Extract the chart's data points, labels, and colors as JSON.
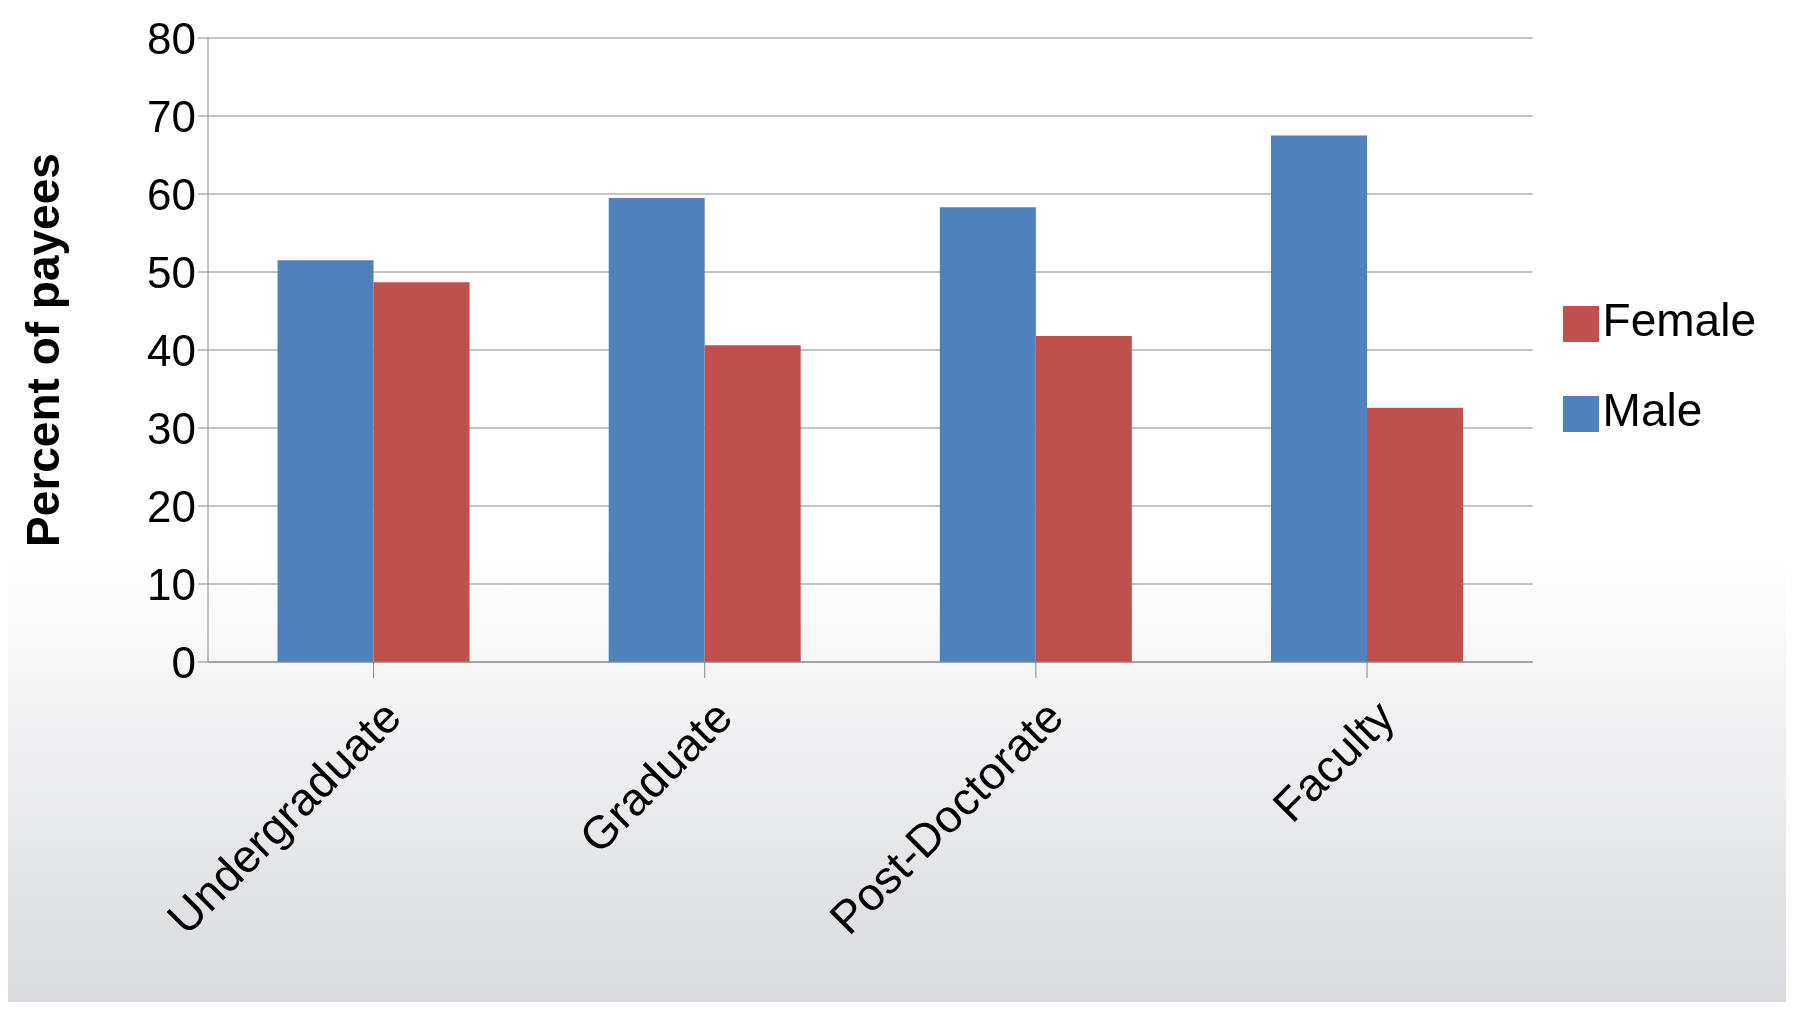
{
  "chart_data": {
    "type": "bar",
    "ylabel": "Percent of payees",
    "categories": [
      "Undergraduate",
      "Graduate",
      "Post-Doctorate",
      "Faculty"
    ],
    "series": [
      {
        "name": "Male",
        "color": "#4f81bd",
        "values": [
          51.5,
          59.5,
          58.3,
          67.5
        ]
      },
      {
        "name": "Female",
        "color": "#c0504d",
        "values": [
          48.7,
          40.6,
          41.8,
          32.6
        ]
      }
    ],
    "ylim": [
      0,
      80
    ],
    "yticks": [
      0,
      10,
      20,
      30,
      40,
      50,
      60,
      70,
      80
    ],
    "grid": "y",
    "legend": "right"
  }
}
